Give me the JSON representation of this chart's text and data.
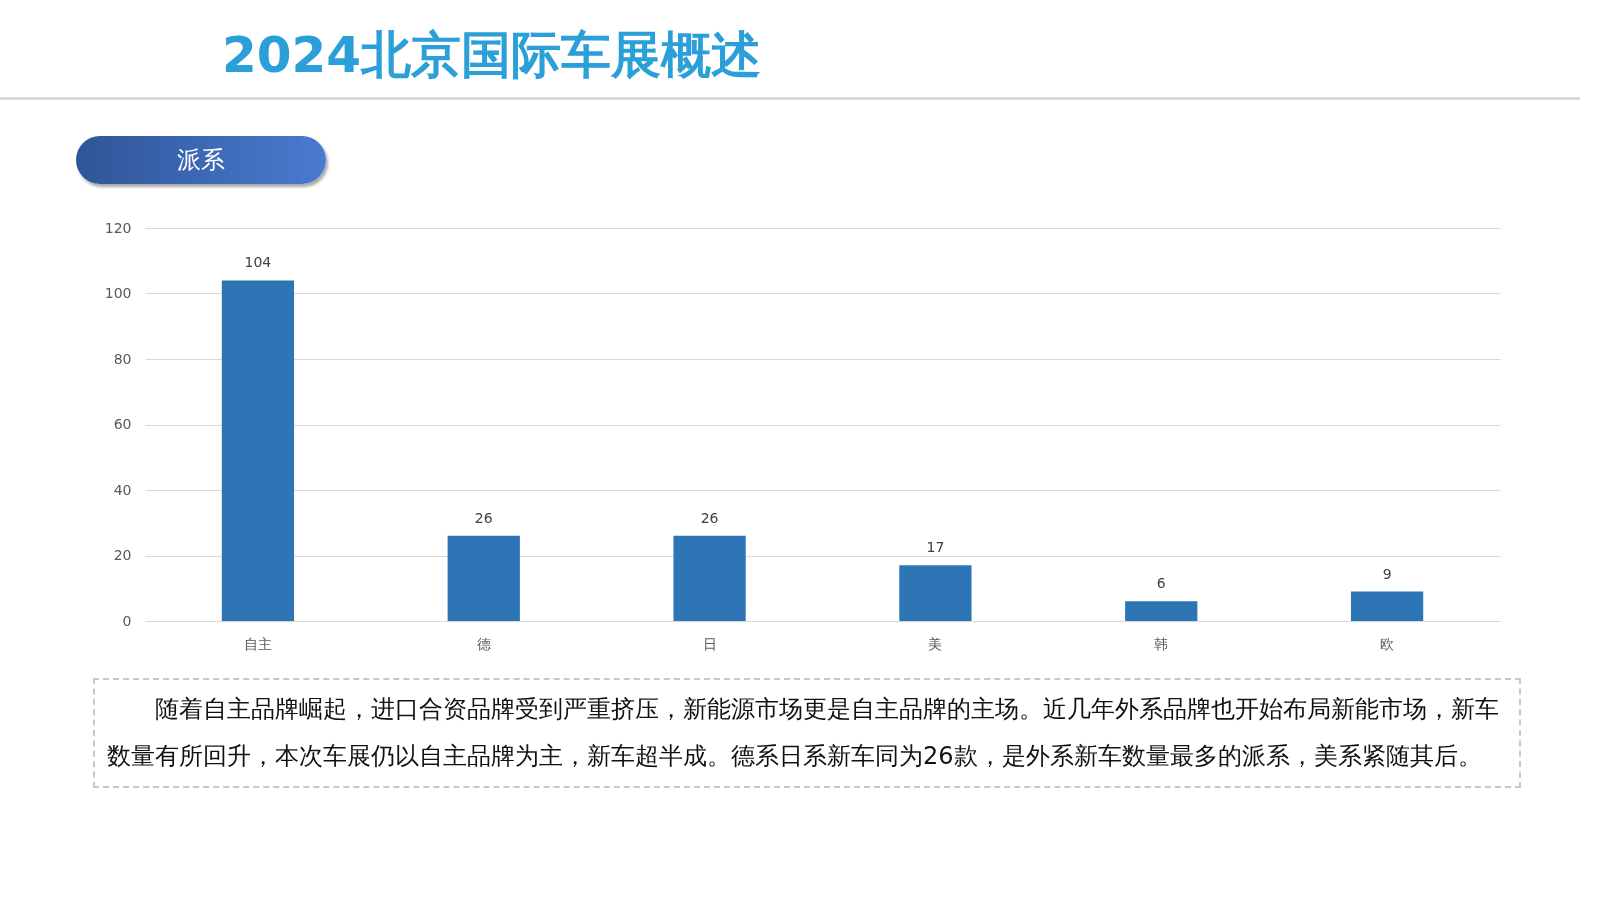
{
  "chart_data": {
    "type": "bar",
    "title": "2024北京国际车展概述",
    "subtitle": "派系",
    "categories": [
      "自主",
      "德",
      "日",
      "美",
      "韩",
      "欧"
    ],
    "values": [
      104,
      26,
      26,
      17,
      6,
      9
    ],
    "color": "#2e75b6",
    "ylim": [
      0,
      120
    ],
    "yticks": [
      0,
      20,
      40,
      60,
      80,
      100,
      120
    ],
    "grid": "y",
    "data_labels": true,
    "annotations": [
      "随着自主品牌崛起，进口合资品牌受到严重挤压，新能源市场更是自主品牌的主场。近几年外系品牌也开始布局新能市场，新车数量有所回升，本次车展仍以自主品牌为主，新车超半成。德系日系新车同为26款，是外系新车数量最多的派系，美系紧随其后。"
    ]
  }
}
